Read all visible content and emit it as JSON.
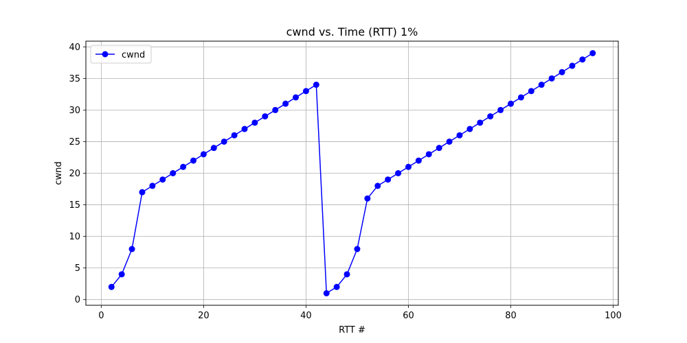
{
  "chart_data": {
    "type": "line",
    "title": "cwnd vs. Time (RTT) 1%",
    "xlabel": "RTT #",
    "ylabel": "cwnd",
    "xlim": [
      -3,
      101
    ],
    "ylim": [
      -0.9,
      40.9
    ],
    "xticks": [
      0,
      20,
      40,
      60,
      80,
      100
    ],
    "yticks": [
      0,
      5,
      10,
      15,
      20,
      25,
      30,
      35,
      40
    ],
    "grid": true,
    "legend_position": "top-left",
    "colors": {
      "line": "#0000ff",
      "grid": "#b0b0b0",
      "frame": "#000000",
      "background": "#ffffff"
    },
    "series": [
      {
        "name": "cwnd",
        "marker": "circle",
        "x": [
          2,
          4,
          6,
          8,
          10,
          12,
          14,
          16,
          18,
          20,
          22,
          24,
          26,
          28,
          30,
          32,
          34,
          36,
          38,
          40,
          42,
          44,
          46,
          48,
          50,
          52,
          54,
          56,
          58,
          60,
          62,
          64,
          66,
          68,
          70,
          72,
          74,
          76,
          78,
          80,
          82,
          84,
          86,
          88,
          90,
          92,
          94,
          96
        ],
        "y": [
          2,
          4,
          8,
          17,
          18,
          19,
          20,
          21,
          22,
          23,
          24,
          25,
          26,
          27,
          28,
          29,
          30,
          31,
          32,
          33,
          34,
          1,
          2,
          4,
          8,
          16,
          18,
          19,
          20,
          21,
          22,
          23,
          24,
          25,
          26,
          27,
          28,
          29,
          30,
          31,
          32,
          33,
          34,
          35,
          36,
          37,
          38,
          39
        ]
      }
    ]
  }
}
